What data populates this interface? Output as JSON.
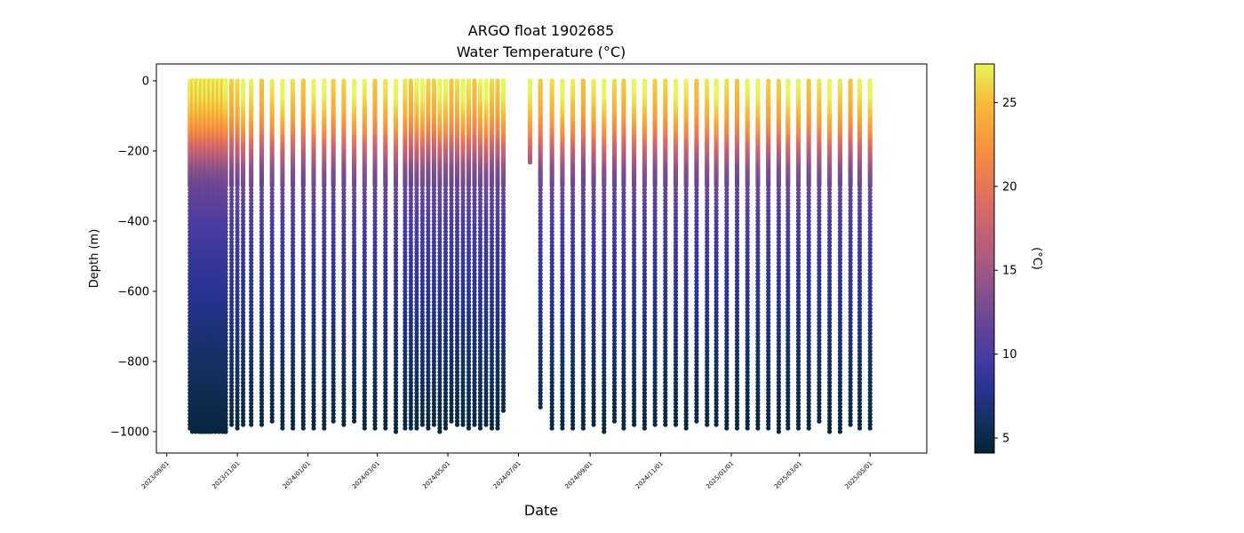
{
  "chart_data": {
    "type": "scatter",
    "title": "ARGO float 1902685",
    "subtitle": "Water Temperature (°C)",
    "xlabel": "Date",
    "ylabel": "Depth (m)",
    "colorbar_label": "(°C)",
    "x_origin_date": "2023/09/01",
    "x_range_days": [
      -9,
      657
    ],
    "ylim": [
      -1061,
      48
    ],
    "color_range": [
      4.1,
      27.3
    ],
    "xticks": [
      {
        "day": 0,
        "label": "2023/09/01"
      },
      {
        "day": 61,
        "label": "2023/11/01"
      },
      {
        "day": 122,
        "label": "2024/01/01"
      },
      {
        "day": 182,
        "label": "2024/03/01"
      },
      {
        "day": 243,
        "label": "2024/05/01"
      },
      {
        "day": 304,
        "label": "2024/07/01"
      },
      {
        "day": 366,
        "label": "2024/09/01"
      },
      {
        "day": 427,
        "label": "2024/11/01"
      },
      {
        "day": 488,
        "label": "2025/01/01"
      },
      {
        "day": 547,
        "label": "2025/03/01"
      },
      {
        "day": 608,
        "label": "2025/05/01"
      }
    ],
    "yticks": [
      {
        "value": 0,
        "label": "0"
      },
      {
        "value": -200,
        "label": "−200"
      },
      {
        "value": -400,
        "label": "−400"
      },
      {
        "value": -600,
        "label": "−600"
      },
      {
        "value": -800,
        "label": "−800"
      },
      {
        "value": -1000,
        "label": "−1000"
      }
    ],
    "cticks": [
      {
        "value": 5,
        "label": "5"
      },
      {
        "value": 10,
        "label": "10"
      },
      {
        "value": 15,
        "label": "15"
      },
      {
        "value": 20,
        "label": "20"
      },
      {
        "value": 25,
        "label": "25"
      }
    ],
    "colormap": [
      [
        4.1,
        "#042333"
      ],
      [
        6,
        "#12305f"
      ],
      [
        8,
        "#2a3493"
      ],
      [
        10,
        "#4a3b9f"
      ],
      [
        13,
        "#7a4d8f"
      ],
      [
        16,
        "#b15c7d"
      ],
      [
        19,
        "#dc6b64"
      ],
      [
        22,
        "#f68d40"
      ],
      [
        25,
        "#f6bb38"
      ],
      [
        27.3,
        "#e6f65c"
      ]
    ],
    "mean_temperature_profile": [
      [
        0,
        27
      ],
      [
        50,
        26
      ],
      [
        100,
        24.3
      ],
      [
        150,
        21.5
      ],
      [
        200,
        17.5
      ],
      [
        250,
        14
      ],
      [
        300,
        12
      ],
      [
        400,
        10.2
      ],
      [
        500,
        9
      ],
      [
        600,
        8
      ],
      [
        800,
        6.2
      ],
      [
        1000,
        4.6
      ]
    ],
    "dense_profiles_days": [
      20,
      51
    ],
    "profiles": [
      [
        56,
        -985
      ],
      [
        61,
        -990
      ],
      [
        66,
        -985
      ],
      [
        73,
        -980
      ],
      [
        82,
        -985
      ],
      [
        91,
        -975
      ],
      [
        100,
        -995
      ],
      [
        109,
        -990
      ],
      [
        118,
        -995
      ],
      [
        127,
        -995
      ],
      [
        136,
        -990
      ],
      [
        144,
        -975
      ],
      [
        153,
        -980
      ],
      [
        162,
        -975
      ],
      [
        171,
        -995
      ],
      [
        180,
        -990
      ],
      [
        189,
        -990
      ],
      [
        198,
        -1008
      ],
      [
        206,
        -990
      ],
      [
        211,
        -995
      ],
      [
        216,
        -990
      ],
      [
        221,
        -985
      ],
      [
        226,
        -990
      ],
      [
        231,
        -980
      ],
      [
        236,
        -1008
      ],
      [
        241,
        -990
      ],
      [
        246,
        -975
      ],
      [
        251,
        -980
      ],
      [
        256,
        -985
      ],
      [
        261,
        -995
      ],
      [
        266,
        -985
      ],
      [
        271,
        -990
      ],
      [
        276,
        -985
      ],
      [
        281,
        -995
      ],
      [
        286,
        -990
      ],
      [
        291,
        -945
      ],
      [
        314,
        -235
      ],
      [
        323,
        -935
      ],
      [
        333,
        -995
      ],
      [
        342,
        -990
      ],
      [
        351,
        -995
      ],
      [
        360,
        -990
      ],
      [
        369,
        -985
      ],
      [
        378,
        -1000
      ],
      [
        387,
        -975
      ],
      [
        395,
        -990
      ],
      [
        404,
        -985
      ],
      [
        413,
        -990
      ],
      [
        422,
        -985
      ],
      [
        431,
        -985
      ],
      [
        440,
        -985
      ],
      [
        449,
        -990
      ],
      [
        458,
        -975
      ],
      [
        467,
        -985
      ],
      [
        475,
        -980
      ],
      [
        484,
        -995
      ],
      [
        493,
        -995
      ],
      [
        502,
        -990
      ],
      [
        511,
        -995
      ],
      [
        520,
        -995
      ],
      [
        529,
        -1008
      ],
      [
        537,
        -990
      ],
      [
        546,
        -995
      ],
      [
        555,
        -990
      ],
      [
        564,
        -975
      ],
      [
        573,
        -1000
      ],
      [
        582,
        -1000
      ],
      [
        591,
        -980
      ],
      [
        599,
        -990
      ],
      [
        608,
        -990
      ]
    ]
  }
}
